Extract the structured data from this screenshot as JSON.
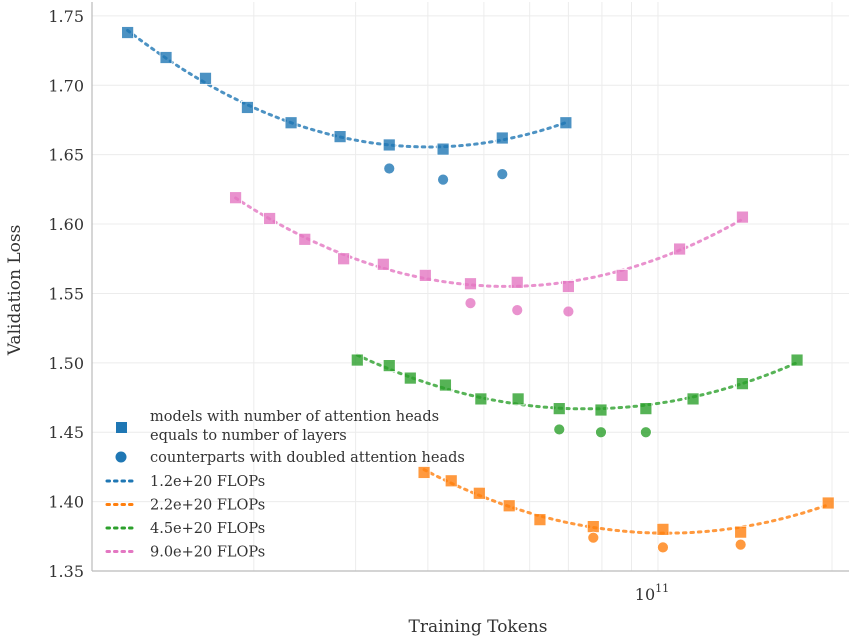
{
  "chart_data": {
    "type": "scatter",
    "xlabel": "Training Tokens",
    "ylabel": "Validation Loss",
    "xscale": "log",
    "xlim": [
      10500000000.0,
      214000000000.0
    ],
    "ylim": [
      1.35,
      1.76
    ],
    "x_tick_labels": [
      {
        "value": 100000000000.0,
        "base": "10",
        "exp": "11"
      }
    ],
    "y_ticks": [
      1.35,
      1.4,
      1.45,
      1.5,
      1.55,
      1.6,
      1.65,
      1.7,
      1.75
    ],
    "y_tick_labels": [
      "1.35",
      "1.40",
      "1.45",
      "1.50",
      "1.55",
      "1.60",
      "1.65",
      "1.70",
      "1.75"
    ],
    "grid": true,
    "legend_placement": "lower-left",
    "legend": {
      "square": "models with number of attention heads",
      "square_line2": "equals to number of layers",
      "circle": "counterparts with doubled attention heads"
    },
    "series": [
      {
        "name": "1.2e+20 FLOPs",
        "color": "#1f77b4",
        "squares": {
          "x": [
            12100000000.0,
            14100000000.0,
            16500000000.0,
            19500000000.0,
            23200000000.0,
            28200000000.0,
            34300000000.0,
            42500000000.0,
            53800000000.0,
            69300000000.0
          ],
          "y": [
            1.738,
            1.72,
            1.705,
            1.684,
            1.673,
            1.663,
            1.657,
            1.654,
            1.662,
            1.673
          ]
        },
        "circles": {
          "x": [
            34300000000.0,
            42500000000.0,
            53800000000.0
          ],
          "y": [
            1.64,
            1.632,
            1.636
          ]
        }
      },
      {
        "name": "2.2e+20 FLOPs",
        "color": "#ff7f0e",
        "squares": {
          "x": [
            39400000000.0,
            43900000000.0,
            49100000000.0,
            55300000000.0,
            62500000000.0,
            77300000000.0,
            102000000000.0,
            139000000000.0,
            197000000000.0
          ],
          "y": [
            1.421,
            1.415,
            1.406,
            1.397,
            1.387,
            1.382,
            1.38,
            1.378,
            1.399
          ]
        },
        "circles": {
          "x": [
            77300000000.0,
            102000000000.0,
            139000000000.0
          ],
          "y": [
            1.374,
            1.367,
            1.369
          ]
        }
      },
      {
        "name": "4.5e+20 FLOPs",
        "color": "#2ca02c",
        "squares": {
          "x": [
            30200000000.0,
            34300000000.0,
            37300000000.0,
            42900000000.0,
            49400000000.0,
            57300000000.0,
            67500000000.0,
            79700000000.0,
            95300000000.0,
            115000000000.0,
            140000000000.0,
            174000000000.0
          ],
          "y": [
            1.502,
            1.498,
            1.489,
            1.484,
            1.474,
            1.474,
            1.467,
            1.466,
            1.467,
            1.474,
            1.485,
            1.502
          ]
        },
        "circles": {
          "x": [
            67500000000.0,
            79700000000.0,
            95300000000.0
          ],
          "y": [
            1.452,
            1.45,
            1.45
          ]
        }
      },
      {
        "name": "9.0e+20 FLOPs",
        "color": "#e377c2",
        "squares": {
          "x": [
            18600000000.0,
            21300000000.0,
            24500000000.0,
            28600000000.0,
            33500000000.0,
            39600000000.0,
            47400000000.0,
            57100000000.0,
            70000000000.0,
            86700000000.0,
            109000000000.0,
            140000000000.0
          ],
          "y": [
            1.619,
            1.604,
            1.589,
            1.575,
            1.571,
            1.563,
            1.557,
            1.558,
            1.555,
            1.563,
            1.582,
            1.605
          ]
        },
        "circles": {
          "x": [
            47400000000.0,
            57100000000.0,
            70000000000.0
          ],
          "y": [
            1.543,
            1.538,
            1.537
          ]
        }
      }
    ]
  }
}
